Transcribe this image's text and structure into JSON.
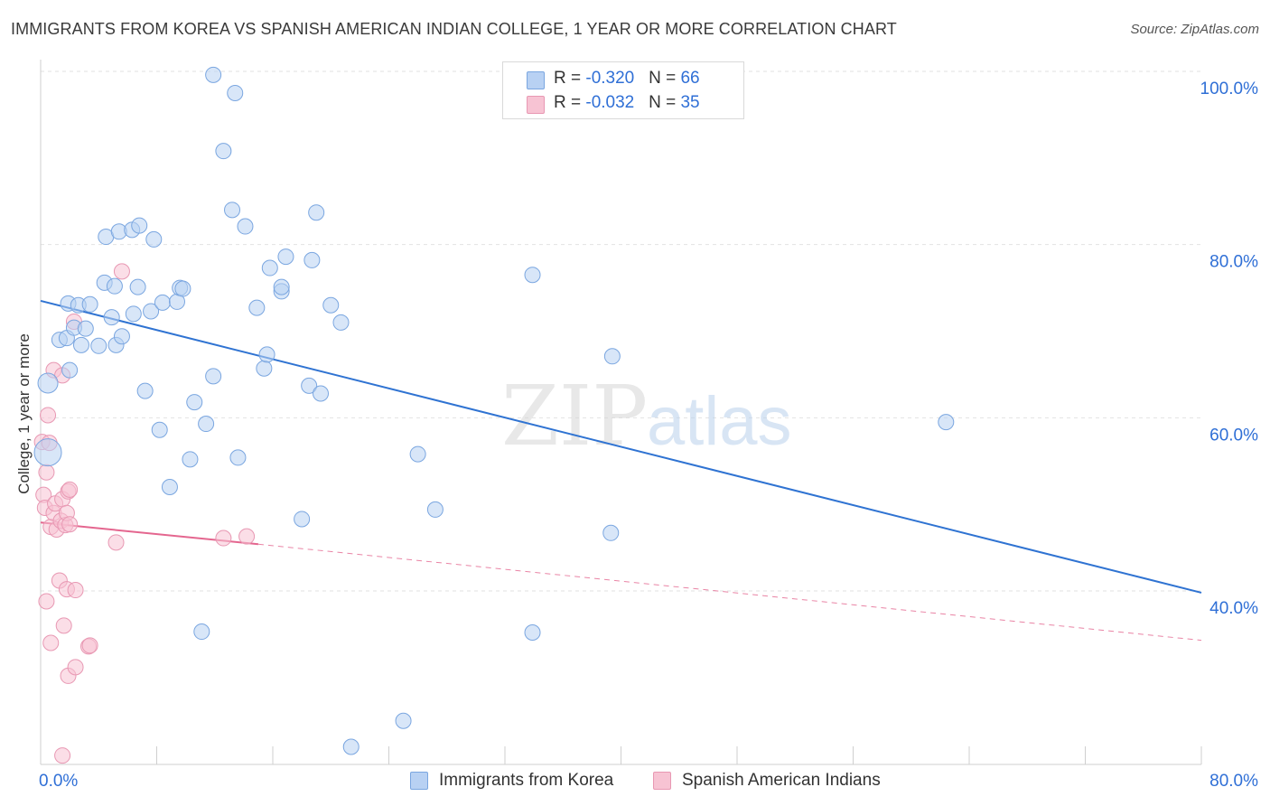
{
  "title": "IMMIGRANTS FROM KOREA VS SPANISH AMERICAN INDIAN COLLEGE, 1 YEAR OR MORE CORRELATION CHART",
  "source": "Source: ZipAtlas.com",
  "watermark": {
    "zip": "ZIP",
    "atlas": "atlas"
  },
  "colors": {
    "blue_fill": "#b8d1f3",
    "blue_stroke": "#7aa6e0",
    "blue_line": "#2f73d2",
    "pink_fill": "#f7c3d3",
    "pink_stroke": "#e898b3",
    "pink_line": "#e4668f",
    "accent_text": "#2f6fd6",
    "grid": "#e2e2e2"
  },
  "legend": {
    "rows": [
      {
        "r_label": "R = ",
        "r_value": "-0.320",
        "n_label": "N = ",
        "n_value": "66"
      },
      {
        "r_label": "R = ",
        "r_value": "-0.032",
        "n_label": "N = ",
        "n_value": "35"
      }
    ]
  },
  "series_labels": {
    "korea": "Immigrants from Korea",
    "spanish": "Spanish American Indians"
  },
  "chart_data": {
    "type": "scatter",
    "title": "IMMIGRANTS FROM KOREA VS SPANISH AMERICAN INDIAN COLLEGE, 1 YEAR OR MORE CORRELATION CHART",
    "xlabel": "",
    "ylabel": "College, 1 year or more",
    "xlim": [
      0,
      80
    ],
    "ylim": [
      20,
      102
    ],
    "x_tick_labels": [
      "0.0%",
      "80.0%"
    ],
    "y_tick_labels": [
      "100.0%",
      "80.0%",
      "60.0%",
      "40.0%"
    ],
    "y_ticks": [
      100,
      80,
      60,
      40
    ],
    "grid": true,
    "legend_position": "top-center",
    "series": [
      {
        "name": "Immigrants from Korea",
        "color": "#b8d1f3",
        "points": [
          [
            0.5,
            64.0
          ],
          [
            0.5,
            56.0
          ],
          [
            1.3,
            69.0
          ],
          [
            1.8,
            69.2
          ],
          [
            1.9,
            73.2
          ],
          [
            2.0,
            65.5
          ],
          [
            2.3,
            70.4
          ],
          [
            2.6,
            73.0
          ],
          [
            2.8,
            68.4
          ],
          [
            3.1,
            70.3
          ],
          [
            3.4,
            73.1
          ],
          [
            4.0,
            68.3
          ],
          [
            4.4,
            75.6
          ],
          [
            4.5,
            80.9
          ],
          [
            4.9,
            71.6
          ],
          [
            5.1,
            75.2
          ],
          [
            5.2,
            68.4
          ],
          [
            5.4,
            81.5
          ],
          [
            5.6,
            69.4
          ],
          [
            6.3,
            81.7
          ],
          [
            6.4,
            72.0
          ],
          [
            6.7,
            75.1
          ],
          [
            6.8,
            82.2
          ],
          [
            7.2,
            63.1
          ],
          [
            7.6,
            72.3
          ],
          [
            7.8,
            80.6
          ],
          [
            8.2,
            58.6
          ],
          [
            8.4,
            73.3
          ],
          [
            8.9,
            52.0
          ],
          [
            9.4,
            73.4
          ],
          [
            9.6,
            75.0
          ],
          [
            9.8,
            74.9
          ],
          [
            10.3,
            55.2
          ],
          [
            10.6,
            61.8
          ],
          [
            11.1,
            35.3
          ],
          [
            11.4,
            59.3
          ],
          [
            11.9,
            64.8
          ],
          [
            11.9,
            99.6
          ],
          [
            12.6,
            90.8
          ],
          [
            13.2,
            84.0
          ],
          [
            13.4,
            97.5
          ],
          [
            13.6,
            55.4
          ],
          [
            14.1,
            82.1
          ],
          [
            14.9,
            72.7
          ],
          [
            15.4,
            65.7
          ],
          [
            15.6,
            67.3
          ],
          [
            15.8,
            77.3
          ],
          [
            16.6,
            74.6
          ],
          [
            16.6,
            75.1
          ],
          [
            16.9,
            78.6
          ],
          [
            18.0,
            48.3
          ],
          [
            18.5,
            63.7
          ],
          [
            18.7,
            78.2
          ],
          [
            19.0,
            83.7
          ],
          [
            19.3,
            62.8
          ],
          [
            20.0,
            73.0
          ],
          [
            20.7,
            71.0
          ],
          [
            21.4,
            22.0
          ],
          [
            25.0,
            25.0
          ],
          [
            26.0,
            55.8
          ],
          [
            27.2,
            49.4
          ],
          [
            33.9,
            35.2
          ],
          [
            33.9,
            76.5
          ],
          [
            39.3,
            46.7
          ],
          [
            39.4,
            67.1
          ],
          [
            62.4,
            59.5
          ]
        ],
        "trend": {
          "x": [
            0,
            80
          ],
          "y": [
            73.5,
            39.8
          ]
        }
      },
      {
        "name": "Spanish American Indians",
        "color": "#f7c3d3",
        "points": [
          [
            0.1,
            57.2
          ],
          [
            0.2,
            51.1
          ],
          [
            0.3,
            49.6
          ],
          [
            0.4,
            53.7
          ],
          [
            0.4,
            38.8
          ],
          [
            0.5,
            60.3
          ],
          [
            0.6,
            57.1
          ],
          [
            0.7,
            47.4
          ],
          [
            0.7,
            34.0
          ],
          [
            0.9,
            49.0
          ],
          [
            0.9,
            65.5
          ],
          [
            1.0,
            50.1
          ],
          [
            1.1,
            47.1
          ],
          [
            1.3,
            41.2
          ],
          [
            1.4,
            48.1
          ],
          [
            1.5,
            50.6
          ],
          [
            1.5,
            64.9
          ],
          [
            1.5,
            21.0
          ],
          [
            1.6,
            36.0
          ],
          [
            1.7,
            47.6
          ],
          [
            1.8,
            49.0
          ],
          [
            1.8,
            40.2
          ],
          [
            1.9,
            30.2
          ],
          [
            1.9,
            51.5
          ],
          [
            2.0,
            51.7
          ],
          [
            2.0,
            47.7
          ],
          [
            2.3,
            71.1
          ],
          [
            2.4,
            40.1
          ],
          [
            2.4,
            31.2
          ],
          [
            3.3,
            33.6
          ],
          [
            3.4,
            33.7
          ],
          [
            5.2,
            45.6
          ],
          [
            5.6,
            76.9
          ],
          [
            12.6,
            46.1
          ],
          [
            14.2,
            46.3
          ]
        ],
        "trend": {
          "x": [
            0,
            15
          ],
          "y": [
            47.9,
            45.4
          ]
        },
        "trend_extension": {
          "x": [
            15,
            80
          ],
          "y": [
            45.4,
            34.3
          ]
        }
      }
    ]
  }
}
